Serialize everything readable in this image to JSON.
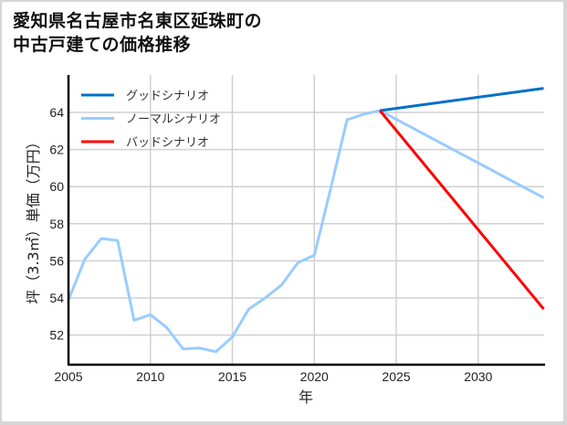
{
  "title": {
    "line1": "愛知県名古屋市名東区延珠町の",
    "line2": "中古戸建ての価格推移"
  },
  "chart_data": {
    "type": "line",
    "title": "愛知県名古屋市名東区延珠町の中古戸建ての価格推移",
    "xlabel": "年",
    "ylabel": "坪（3.3㎡）単価（万円）",
    "xlim": [
      2005,
      2034
    ],
    "ylim": [
      50.4,
      66.3
    ],
    "x_ticks": [
      2005,
      2010,
      2015,
      2020,
      2025,
      2030
    ],
    "y_ticks": [
      52,
      54,
      56,
      58,
      60,
      62,
      64
    ],
    "grid": true,
    "legend_position": "upper left",
    "series": [
      {
        "name": "ノーマルシナリオ",
        "color": "#99ccff",
        "x": [
          2005,
          2006,
          2007,
          2008,
          2009,
          2010,
          2011,
          2012,
          2013,
          2014,
          2015,
          2016,
          2017,
          2018,
          2019,
          2020,
          2021,
          2022,
          2023,
          2024,
          2034
        ],
        "y": [
          53.9,
          56.1,
          57.2,
          57.1,
          52.8,
          53.1,
          52.4,
          51.25,
          51.3,
          51.1,
          51.9,
          53.4,
          54.0,
          54.7,
          55.9,
          56.3,
          59.9,
          63.6,
          63.9,
          64.1,
          59.4
        ]
      },
      {
        "name": "グッドシナリオ",
        "color": "#0070c8",
        "x": [
          2024,
          2034
        ],
        "y": [
          64.1,
          65.3
        ]
      },
      {
        "name": "バッドシナリオ",
        "color": "#ff0000",
        "x": [
          2024,
          2034
        ],
        "y": [
          64.1,
          53.4
        ]
      }
    ],
    "legend": [
      {
        "label": "グッドシナリオ",
        "color": "#0070c8"
      },
      {
        "label": "ノーマルシナリオ",
        "color": "#99ccff"
      },
      {
        "label": "バッドシナリオ",
        "color": "#ff0000"
      }
    ]
  }
}
